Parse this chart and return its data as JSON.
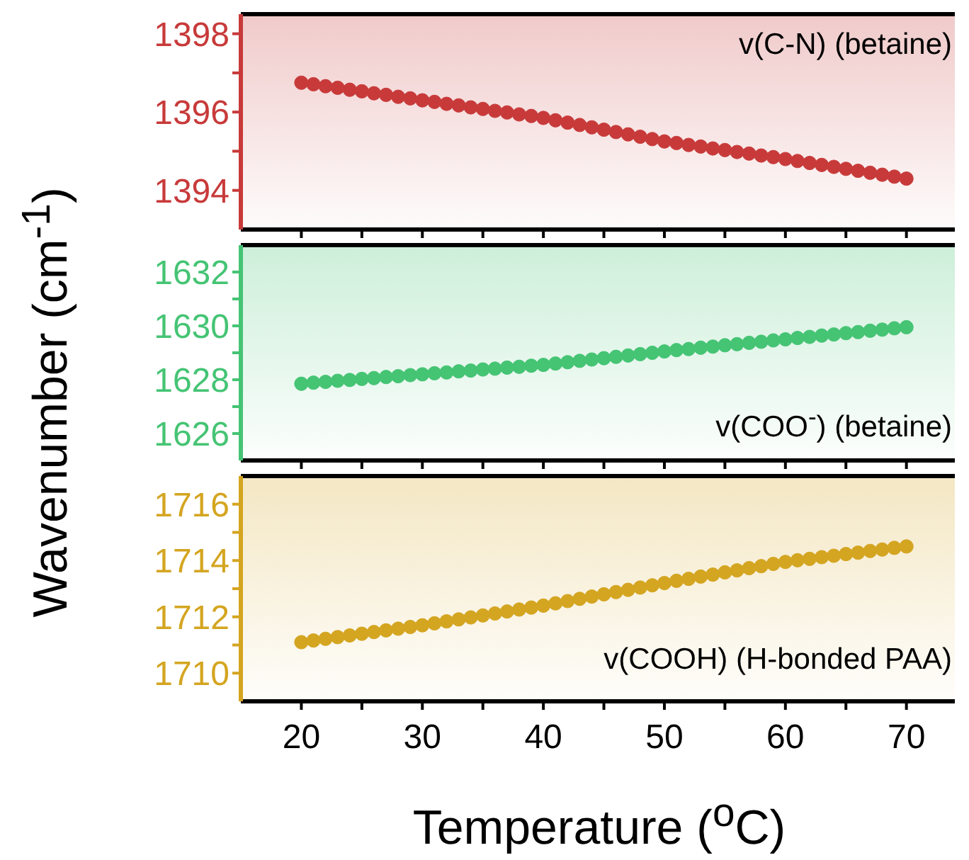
{
  "chart_data": [
    {
      "type": "scatter",
      "marker": "circle",
      "tick_labels": "y",
      "annotations": [
        "v(C-N) (betaine)"
      ],
      "x": [
        20,
        21,
        22,
        23,
        24,
        25,
        26,
        27,
        28,
        29,
        30,
        31,
        32,
        33,
        34,
        35,
        36,
        37,
        38,
        39,
        40,
        41,
        42,
        43,
        44,
        45,
        46,
        47,
        48,
        49,
        50,
        51,
        52,
        53,
        54,
        55,
        56,
        57,
        58,
        59,
        60,
        61,
        62,
        63,
        64,
        65,
        66,
        67,
        68,
        69,
        70
      ],
      "series": [
        {
          "color": "#c83a3a",
          "values": [
            1396.75,
            1396.71,
            1396.66,
            1396.62,
            1396.57,
            1396.53,
            1396.48,
            1396.44,
            1396.39,
            1396.35,
            1396.3,
            1396.26,
            1396.21,
            1396.17,
            1396.12,
            1396.08,
            1396.03,
            1395.99,
            1395.94,
            1395.9,
            1395.85,
            1395.79,
            1395.73,
            1395.67,
            1395.61,
            1395.55,
            1395.49,
            1395.43,
            1395.37,
            1395.31,
            1395.25,
            1395.21,
            1395.16,
            1395.12,
            1395.07,
            1395.03,
            1394.98,
            1394.94,
            1394.89,
            1394.85,
            1394.8,
            1394.75,
            1394.7,
            1394.65,
            1394.6,
            1394.55,
            1394.5,
            1394.45,
            1394.4,
            1394.35,
            1394.3
          ]
        }
      ],
      "xlim": [
        15,
        74
      ],
      "xticks": [
        20,
        {
          "value": 25,
          "label": null
        },
        30,
        {
          "value": 35,
          "label": null
        },
        40,
        {
          "value": 45,
          "label": null
        },
        50,
        {
          "value": 55,
          "label": null
        },
        60,
        {
          "value": 65,
          "label": null
        },
        70
      ],
      "ylim": [
        1393,
        1398.5
      ],
      "yticks": [
        1394,
        {
          "value": 1395,
          "label": null
        },
        1396,
        {
          "value": 1397,
          "label": null
        },
        1398
      ]
    },
    {
      "type": "scatter",
      "marker": "circle",
      "tick_labels": "y",
      "ylabel": "Wavenumber (cm$^{-1}$)",
      "annotations": [
        "v(COO$^{-}$) (betaine)"
      ],
      "x": [
        20,
        21,
        22,
        23,
        24,
        25,
        26,
        27,
        28,
        29,
        30,
        31,
        32,
        33,
        34,
        35,
        36,
        37,
        38,
        39,
        40,
        41,
        42,
        43,
        44,
        45,
        46,
        47,
        48,
        49,
        50,
        51,
        52,
        53,
        54,
        55,
        56,
        57,
        58,
        59,
        60,
        61,
        62,
        63,
        64,
        65,
        66,
        67,
        68,
        69,
        70
      ],
      "series": [
        {
          "color": "#45c474",
          "values": [
            1627.85,
            1627.89,
            1627.92,
            1627.96,
            1627.99,
            1628.03,
            1628.06,
            1628.1,
            1628.13,
            1628.17,
            1628.2,
            1628.24,
            1628.27,
            1628.31,
            1628.34,
            1628.38,
            1628.41,
            1628.45,
            1628.48,
            1628.52,
            1628.55,
            1628.6,
            1628.65,
            1628.7,
            1628.75,
            1628.8,
            1628.85,
            1628.9,
            1628.95,
            1629.0,
            1629.05,
            1629.1,
            1629.14,
            1629.19,
            1629.23,
            1629.28,
            1629.32,
            1629.37,
            1629.41,
            1629.46,
            1629.5,
            1629.55,
            1629.59,
            1629.64,
            1629.68,
            1629.73,
            1629.77,
            1629.82,
            1629.86,
            1629.91,
            1629.95
          ]
        }
      ],
      "xlim": [
        15,
        74
      ],
      "xticks": [
        20,
        {
          "value": 25,
          "label": null
        },
        30,
        {
          "value": 35,
          "label": null
        },
        40,
        {
          "value": 45,
          "label": null
        },
        50,
        {
          "value": 55,
          "label": null
        },
        60,
        {
          "value": 65,
          "label": null
        },
        70
      ],
      "ylim": [
        1625,
        1633
      ],
      "yticks": [
        1626,
        {
          "value": 1627,
          "label": null
        },
        1628,
        {
          "value": 1629,
          "label": null
        },
        1630,
        {
          "value": 1631,
          "label": null
        },
        1632
      ]
    },
    {
      "type": "scatter",
      "marker": "circle",
      "xlabel": "Temperature ($^{o}$C)",
      "annotations": [
        "v(COOH) (H-bonded PAA)"
      ],
      "x": [
        20,
        21,
        22,
        23,
        24,
        25,
        26,
        27,
        28,
        29,
        30,
        31,
        32,
        33,
        34,
        35,
        36,
        37,
        38,
        39,
        40,
        41,
        42,
        43,
        44,
        45,
        46,
        47,
        48,
        49,
        50,
        51,
        52,
        53,
        54,
        55,
        56,
        57,
        58,
        59,
        60,
        61,
        62,
        63,
        64,
        65,
        66,
        67,
        68,
        69,
        70
      ],
      "series": [
        {
          "color": "#d4a520",
          "values": [
            1711.1,
            1711.16,
            1711.22,
            1711.28,
            1711.34,
            1711.4,
            1711.46,
            1711.52,
            1711.58,
            1711.64,
            1711.7,
            1711.77,
            1711.84,
            1711.91,
            1711.98,
            1712.05,
            1712.12,
            1712.19,
            1712.26,
            1712.33,
            1712.4,
            1712.48,
            1712.56,
            1712.64,
            1712.72,
            1712.8,
            1712.88,
            1712.96,
            1713.04,
            1713.12,
            1713.2,
            1713.28,
            1713.35,
            1713.43,
            1713.5,
            1713.58,
            1713.65,
            1713.73,
            1713.8,
            1713.88,
            1713.95,
            1714.01,
            1714.06,
            1714.12,
            1714.17,
            1714.23,
            1714.28,
            1714.34,
            1714.39,
            1714.45,
            1714.5
          ]
        }
      ],
      "xlim": [
        15,
        74
      ],
      "xticks": [
        20,
        {
          "value": 25,
          "label": null
        },
        30,
        {
          "value": 35,
          "label": null
        },
        40,
        {
          "value": 45,
          "label": null
        },
        50,
        {
          "value": 55,
          "label": null
        },
        60,
        {
          "value": 65,
          "label": null
        },
        70
      ],
      "ylim": [
        1709,
        1717
      ],
      "yticks": [
        1710,
        {
          "value": 1711,
          "label": null
        },
        1712,
        {
          "value": 1713,
          "label": null
        },
        1714,
        {
          "value": 1715,
          "label": null
        },
        1716
      ]
    }
  ]
}
